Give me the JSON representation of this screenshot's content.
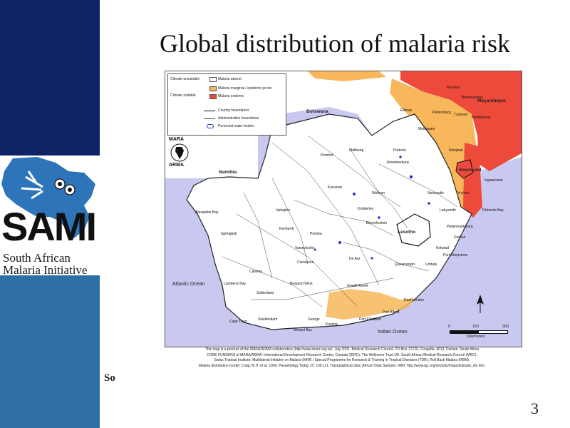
{
  "slide": {
    "title": "Global distribution of malaria risk",
    "page_number": "3",
    "partial_text": "So"
  },
  "logo": {
    "acronym": "SAMI",
    "line1": "South African",
    "line2": "Malaria Initiative"
  },
  "map": {
    "legend": {
      "climate_unsuitable": "Climate unsuitable",
      "climate_suitable": "Climate suitable",
      "absent": "Malaria absent",
      "marginal": "Malaria marginal / epidemic prone",
      "endemic": "Malaria endemic",
      "country_boundaries": "Country boundaries",
      "admin_boundaries": "Administrative boundaries",
      "water_bodies": "Perennial water bodies"
    },
    "legend_colors": {
      "absent": "#ffffff",
      "marginal": "#f7b75a",
      "endemic": "#ee4a3c",
      "water": "#2233cc",
      "ocean": "#c8c8f0"
    },
    "mara": {
      "line1": "MARA",
      "line2": "ARMA"
    },
    "countries": {
      "botswana": "Botswana",
      "namibia": "Namibia",
      "mozambique": "Moçambique",
      "swaziland": "Swaziland",
      "lesotho": "Lesotho"
    },
    "oceans": {
      "atlantic": "Atlantic Ocean",
      "indian": "Indian Ocean"
    },
    "places": {
      "tzaneen": "Tzaneen",
      "pietersburg": "Pietersburg",
      "nelspruit": "Nelspruit",
      "pretoria": "Pretoria",
      "johannesburg": "Johannesburg",
      "mafikeng": "Mafikeng",
      "kimberley": "Kimberley",
      "bloemfontein": "Bloemfontein",
      "upington": "Upington",
      "springbok": "Springbok",
      "alexander_bay": "Alexander Bay",
      "durban": "Durban",
      "pietermaritzburg": "Pietermaritzburg",
      "port_shepstone": "Port Shepstone",
      "umtata": "Umtata",
      "east_london": "East London",
      "port_elizabeth": "Port Elizabeth",
      "george": "George",
      "mossel_bay": "Mossel Bay",
      "cape_town": "Cape Town",
      "beaufort_west": "Beaufort West",
      "graaff_reinet": "Graaff Reinet",
      "de_aar": "De Aar",
      "pomfret": "Pomfret",
      "richards_bay": "Richards Bay",
      "ladysmith": "Ladysmith",
      "newcastle": "Newcastle",
      "vryheid": "Vryheid",
      "ingwavuma": "Ingwavuma",
      "carnarvon": "Carnarvon",
      "calvinia": "Calvinia",
      "lamberts_bay": "Lamberts Bay",
      "kenhardt": "Kenhardt",
      "prieska": "Prieska",
      "vanwyksvlei": "Vanwyksvlei",
      "kuruman": "Kuruman",
      "sutherland": "Sutherland",
      "port_alfred": "Port Alfred",
      "queenstown": "Queenstown",
      "kokstad": "Kokstad",
      "welkom": "Welkom",
      "mokopane": "Mokopane",
      "ellisras": "Ellisras",
      "thohoyandou": "Thohoyandou",
      "phalaborwa": "Phalaborwa",
      "messina": "Messina",
      "swellendam": "Swellendam",
      "knysna": "Knysna"
    },
    "scale": {
      "zero": "0",
      "mid": "150",
      "max": "300",
      "unit": "Kilometers"
    },
    "caption": [
      "This map is a product of the MARA/ARMA collaboration (http://www.mara.org.za). July 2001. Medical Research Council, PO Box 17120, Congella, 4013, Durban, South Africa",
      "CORE FUNDERS of MARA/ARMA: International Development Research Centre, Canada (IDRC); The Wellcome Trust UK; South African Medical Research Council (MRC);",
      "Swiss Tropical Institute, Multilateral Initiative on Malaria (MIM) / Special Programme for Research & Training in Tropical Diseases (TDR), Roll Back Malaria (RBM).",
      "Malaria distribution model: Craig, M.H. et al. 1999. Parasitology Today 15: 105-111.    Topographical data: African Data Sampler; WRI; http://www.igc.org/wri/sdis/maps/ads/ads_idx.htm."
    ]
  }
}
